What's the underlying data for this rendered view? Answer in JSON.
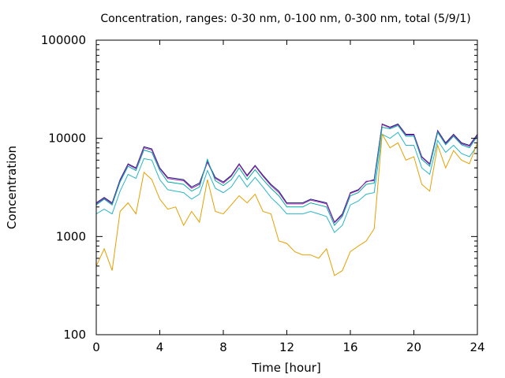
{
  "chart_data": {
    "type": "line",
    "title": "Concentration, ranges: 0-30 nm, 0-100 nm, 0-300 nm, total (5/9/1)",
    "xlabel": "Time [hour]",
    "ylabel": "Concentration",
    "xlim": [
      0,
      24
    ],
    "ylim": [
      100,
      100000
    ],
    "y_scale": "log",
    "grid": false,
    "legend": "none",
    "x_ticks": [
      "0",
      "4",
      "8",
      "12",
      "16",
      "20",
      "24"
    ],
    "y_ticks": [
      "100",
      "1000",
      "10000",
      "100000"
    ],
    "x": [
      0,
      0.5,
      1,
      1.5,
      2,
      2.5,
      3,
      3.5,
      4,
      4.5,
      5,
      5.5,
      6,
      6.5,
      7,
      7.5,
      8,
      8.5,
      9,
      9.5,
      10,
      10.5,
      11,
      11.5,
      12,
      12.5,
      13,
      13.5,
      14,
      14.5,
      15,
      15.5,
      16,
      16.5,
      17,
      17.5,
      18,
      18.5,
      19,
      19.5,
      20,
      20.5,
      21,
      21.5,
      22,
      22.5,
      23,
      23.5,
      24
    ],
    "series": [
      {
        "color": "#1a237e",
        "values": [
          2200,
          2500,
          2200,
          3800,
          5500,
          5000,
          8200,
          7800,
          5000,
          4000,
          3900,
          3800,
          3200,
          3500,
          5800,
          4000,
          3600,
          4200,
          5500,
          4200,
          5300,
          4200,
          3400,
          2900,
          2200,
          2200,
          2200,
          2400,
          2300,
          2200,
          1400,
          1700,
          2800,
          3000,
          3600,
          3800,
          14000,
          13000,
          14000,
          11000,
          11000,
          6500,
          5500,
          12000,
          9000,
          11000,
          9000,
          8500,
          11000
        ]
      },
      {
        "color": "#9c27b0",
        "values": [
          2150,
          2450,
          2150,
          3700,
          5400,
          4900,
          8000,
          7600,
          4900,
          3900,
          3800,
          3700,
          3100,
          3400,
          5700,
          3900,
          3500,
          4100,
          5400,
          4100,
          5200,
          4100,
          3300,
          2800,
          2150,
          2150,
          2150,
          2350,
          2250,
          2150,
          1380,
          1650,
          2750,
          2950,
          3650,
          3700,
          13800,
          12800,
          13800,
          10800,
          10800,
          6400,
          5400,
          11800,
          8800,
          10800,
          8800,
          8300,
          10800
        ]
      },
      {
        "color": "#00a9a9",
        "values": [
          2100,
          2400,
          2100,
          3600,
          5200,
          4700,
          7600,
          7200,
          4700,
          3600,
          3500,
          3400,
          2900,
          3200,
          6100,
          3700,
          3300,
          3800,
          5000,
          3800,
          4800,
          3800,
          3100,
          2600,
          2000,
          2000,
          2000,
          2200,
          2100,
          2000,
          1300,
          1600,
          2600,
          2800,
          3400,
          3500,
          13000,
          12500,
          13500,
          10500,
          10500,
          6100,
          5200,
          11500,
          8600,
          10500,
          8600,
          8000,
          10500
        ]
      },
      {
        "color": "#29b6c6",
        "values": [
          1700,
          1900,
          1700,
          2900,
          4300,
          3900,
          6200,
          6000,
          3800,
          3000,
          2900,
          2800,
          2400,
          2700,
          4700,
          3100,
          2800,
          3200,
          4200,
          3200,
          4000,
          3200,
          2500,
          2100,
          1700,
          1700,
          1700,
          1800,
          1700,
          1600,
          1100,
          1300,
          2100,
          2300,
          2700,
          2800,
          11000,
          10000,
          11500,
          8500,
          8500,
          5000,
          4300,
          9500,
          7200,
          8500,
          7000,
          6500,
          8500
        ]
      },
      {
        "color": "#e6a000",
        "values": [
          500,
          750,
          450,
          1800,
          2200,
          1700,
          4500,
          3800,
          2400,
          1900,
          2000,
          1300,
          1800,
          1400,
          3800,
          1800,
          1700,
          2100,
          2600,
          2200,
          2700,
          1800,
          1700,
          900,
          850,
          700,
          650,
          650,
          600,
          750,
          400,
          450,
          700,
          800,
          900,
          1200,
          11000,
          8000,
          9000,
          6000,
          6500,
          3400,
          2900,
          8500,
          5000,
          7500,
          6000,
          5500,
          9000
        ]
      }
    ]
  }
}
